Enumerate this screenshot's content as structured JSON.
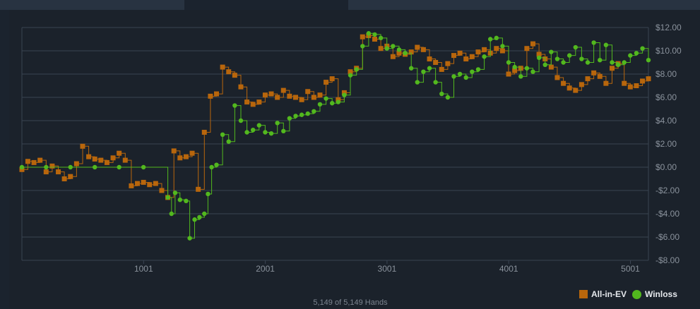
{
  "footer": {
    "hands_text": "5,149 of 5,149 Hands"
  },
  "colors": {
    "allin_ev": "#b8660c",
    "winloss": "#52b81e",
    "grid": "#3a4452",
    "tick_text": "#8a929c"
  },
  "chart_data": {
    "type": "line",
    "title": "",
    "xlabel": "",
    "ylabel": "",
    "xlim": [
      1,
      5149
    ],
    "ylim": [
      -8,
      12
    ],
    "x_ticks": [
      1001,
      2001,
      3001,
      4001,
      5001
    ],
    "x_tick_labels": [
      "1001",
      "2001",
      "3001",
      "4001",
      "5001"
    ],
    "y_ticks": [
      12,
      10,
      8,
      6,
      4,
      2,
      0,
      -2,
      -4,
      -6,
      -8
    ],
    "y_tick_labels": [
      "$12.00",
      "$10.00",
      "$8.00",
      "$6.00",
      "$4.00",
      "$2.00",
      "$0.00",
      "-$2.00",
      "-$4.00",
      "-$6.00",
      "-$8.00"
    ],
    "grid": true,
    "legend_position": "bottom-right",
    "series": [
      {
        "name": "All-in-EV",
        "marker": "square",
        "x": [
          1,
          50,
          100,
          150,
          200,
          250,
          300,
          350,
          400,
          450,
          500,
          550,
          600,
          650,
          700,
          750,
          800,
          850,
          900,
          950,
          1000,
          1050,
          1100,
          1150,
          1200,
          1250,
          1300,
          1350,
          1400,
          1450,
          1500,
          1550,
          1600,
          1650,
          1700,
          1750,
          1800,
          1850,
          1900,
          1950,
          2000,
          2050,
          2100,
          2150,
          2200,
          2250,
          2300,
          2350,
          2400,
          2450,
          2500,
          2550,
          2600,
          2650,
          2700,
          2750,
          2800,
          2850,
          2900,
          2950,
          3000,
          3050,
          3100,
          3150,
          3200,
          3250,
          3300,
          3350,
          3400,
          3450,
          3500,
          3550,
          3600,
          3650,
          3700,
          3750,
          3800,
          3850,
          3900,
          3950,
          4000,
          4050,
          4100,
          4150,
          4200,
          4250,
          4300,
          4350,
          4400,
          4450,
          4500,
          4550,
          4600,
          4650,
          4700,
          4750,
          4800,
          4850,
          4900,
          4950,
          5000,
          5050,
          5100,
          5149
        ],
        "y": [
          -0.2,
          0.5,
          0.4,
          0.6,
          -0.4,
          0.1,
          -0.4,
          -1.0,
          -0.8,
          0.3,
          1.8,
          0.9,
          0.7,
          0.6,
          0.4,
          0.8,
          1.2,
          0.6,
          -1.6,
          -1.4,
          -1.3,
          -1.5,
          -1.4,
          -2.0,
          -2.6,
          1.4,
          0.8,
          0.9,
          1.2,
          -1.9,
          3.0,
          6.1,
          6.3,
          8.6,
          8.2,
          7.9,
          6.9,
          5.6,
          5.4,
          5.6,
          6.2,
          6.3,
          6.0,
          6.6,
          6.1,
          6.0,
          5.8,
          6.5,
          6.0,
          6.2,
          7.3,
          7.6,
          5.8,
          6.4,
          8.2,
          8.5,
          11.2,
          11.3,
          11.0,
          10.2,
          10.4,
          9.5,
          9.8,
          9.7,
          9.9,
          10.3,
          10.1,
          9.3,
          9.0,
          8.4,
          8.9,
          9.6,
          9.8,
          9.3,
          9.5,
          9.9,
          10.1,
          9.8,
          10.2,
          10.0,
          8.0,
          8.3,
          8.5,
          10.2,
          10.6,
          9.7,
          9.3,
          8.6,
          7.7,
          7.2,
          6.8,
          6.6,
          7.1,
          7.6,
          8.1,
          7.8,
          7.2,
          8.5,
          8.9,
          7.2,
          6.9,
          7.0,
          7.4,
          7.6
        ]
      },
      {
        "name": "Winloss",
        "marker": "circle",
        "x": [
          1,
          200,
          400,
          600,
          800,
          1000,
          1200,
          1230,
          1260,
          1300,
          1350,
          1380,
          1420,
          1460,
          1500,
          1530,
          1560,
          1600,
          1650,
          1700,
          1750,
          1800,
          1850,
          1900,
          1950,
          2000,
          2050,
          2100,
          2150,
          2200,
          2250,
          2300,
          2350,
          2400,
          2450,
          2500,
          2550,
          2600,
          2650,
          2700,
          2750,
          2800,
          2850,
          2900,
          2950,
          3000,
          3050,
          3100,
          3150,
          3200,
          3250,
          3300,
          3350,
          3400,
          3450,
          3500,
          3550,
          3600,
          3650,
          3700,
          3750,
          3800,
          3850,
          3900,
          3950,
          4000,
          4050,
          4100,
          4150,
          4200,
          4250,
          4300,
          4350,
          4400,
          4450,
          4500,
          4550,
          4600,
          4650,
          4700,
          4750,
          4800,
          4850,
          4900,
          4950,
          5000,
          5050,
          5100,
          5149
        ],
        "y": [
          0.0,
          0.0,
          0.0,
          0.0,
          0.0,
          0.0,
          -2.6,
          -4.0,
          -2.2,
          -2.8,
          -2.9,
          -6.1,
          -4.5,
          -4.3,
          -4.0,
          -2.3,
          0.0,
          0.2,
          2.8,
          2.2,
          5.3,
          4.0,
          3.0,
          3.2,
          3.6,
          3.0,
          2.9,
          3.8,
          3.1,
          4.2,
          4.4,
          4.5,
          4.6,
          4.8,
          5.4,
          5.9,
          5.5,
          5.6,
          6.2,
          7.9,
          8.4,
          10.4,
          11.5,
          11.4,
          11.1,
          10.2,
          10.4,
          10.1,
          9.8,
          8.5,
          7.3,
          8.2,
          8.5,
          7.3,
          6.3,
          6.0,
          7.8,
          8.0,
          7.7,
          8.2,
          8.4,
          9.5,
          11.0,
          11.1,
          10.4,
          9.0,
          8.6,
          7.8,
          8.5,
          8.2,
          9.4,
          8.8,
          9.9,
          9.3,
          9.0,
          9.6,
          10.3,
          9.3,
          9.0,
          10.7,
          9.2,
          10.5,
          9.0,
          8.8,
          9.0,
          9.6,
          9.8,
          10.2,
          9.2
        ]
      }
    ]
  },
  "legend": {
    "allin_label": "All-in-EV",
    "winloss_label": "Winloss"
  }
}
